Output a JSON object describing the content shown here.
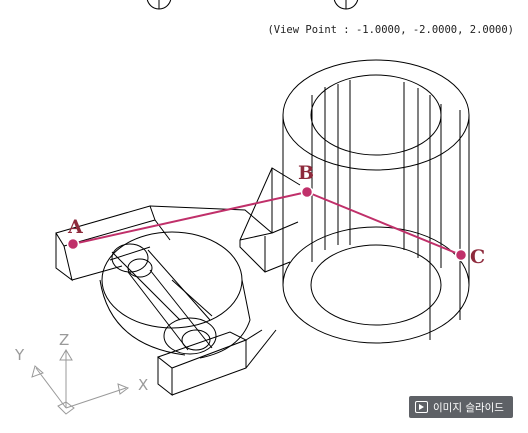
{
  "view_point_text": "(View Point : -1.0000, -2.0000, 2.0000)",
  "points": [
    {
      "label": "A"
    },
    {
      "label": "B"
    },
    {
      "label": "C"
    }
  ],
  "axes": {
    "x": "X",
    "y": "Y",
    "z": "Z"
  },
  "slide_button": {
    "label": "이미지 슬라이드",
    "icon": "slideshow-icon"
  },
  "colors": {
    "accent": "#c0306a",
    "label": "#8e2a3c",
    "lines": "#000000",
    "axis": "#9a9a9a",
    "button_bg": "#5e6166"
  }
}
